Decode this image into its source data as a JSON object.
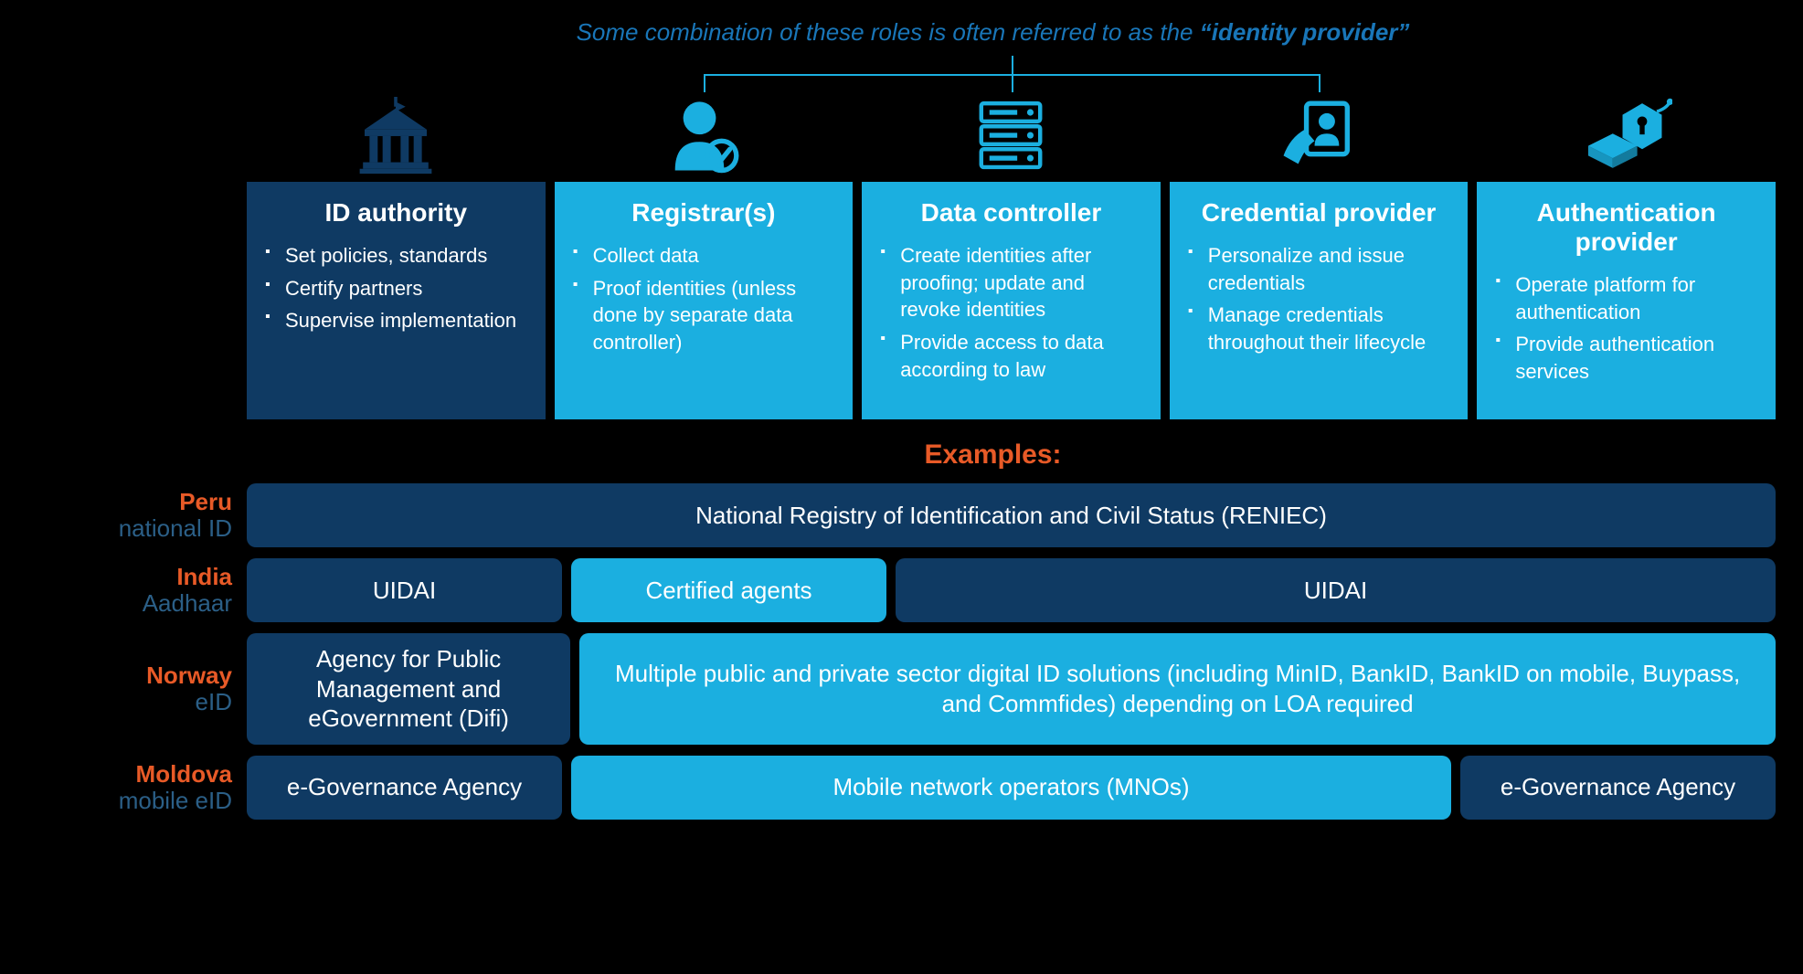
{
  "colors": {
    "background": "#000000",
    "dark_blue": "#0f3a63",
    "light_blue": "#1bafe0",
    "orange": "#e85a27",
    "note_blue": "#1976b8",
    "label_blue": "#2b5f87",
    "icon_dark": "#0f3a63",
    "icon_light": "#1bafe0"
  },
  "top_note": {
    "prefix": "Some combination of these roles is often referred to as the ",
    "quoted": "“identity provider”",
    "fontsize": 26
  },
  "roles": [
    {
      "title": "ID authority",
      "box_class": "dark",
      "icon": "gov-building",
      "icon_color": "#0f3a63",
      "bullets": [
        "Set policies, standards",
        "Certify partners",
        "Supervise implementation"
      ]
    },
    {
      "title": "Registrar(s)",
      "box_class": "light",
      "icon": "person-check",
      "icon_color": "#1bafe0",
      "bullets": [
        "Collect data",
        "Proof identities (unless done by separate data controller)"
      ]
    },
    {
      "title": "Data controller",
      "box_class": "light",
      "icon": "server",
      "icon_color": "#1bafe0",
      "bullets": [
        "Create identities after proofing; update and revoke identities",
        "Provide access to data according to law"
      ]
    },
    {
      "title": "Credential provider",
      "box_class": "light",
      "icon": "id-card",
      "icon_color": "#1bafe0",
      "bullets": [
        "Personalize and issue credentials",
        "Manage credentials throughout their lifecycle"
      ]
    },
    {
      "title": "Authentication provider",
      "box_class": "light",
      "icon": "auth-lock",
      "icon_color": "#1bafe0",
      "bullets": [
        "Operate platform for authentication",
        "Provide authentication services"
      ]
    }
  ],
  "bracket": {
    "covers_roles": [
      1,
      2,
      3
    ],
    "color": "#1bafe0"
  },
  "examples_label": "Examples:",
  "examples": [
    {
      "country": "Peru",
      "sub": "national ID",
      "cells": [
        {
          "text": "National Registry of Identification and Civil Status (RENIEC)",
          "span": 5,
          "style": "dark"
        }
      ]
    },
    {
      "country": "India",
      "sub": "Aadhaar",
      "cells": [
        {
          "text": "UIDAI",
          "span": 1,
          "style": "dark"
        },
        {
          "text": "Certified agents",
          "span": 1,
          "style": "light"
        },
        {
          "text": "UIDAI",
          "span": 3,
          "style": "dark"
        }
      ]
    },
    {
      "country": "Norway",
      "sub": "eID",
      "cells": [
        {
          "text": "Agency for Public Management and eGovernment (Difi)",
          "span": 1,
          "style": "dark"
        },
        {
          "text": "Multiple public and private sector digital ID solutions (including MinID, BankID, BankID on mobile, Buypass, and Commfides) depending on LOA required",
          "span": 4,
          "style": "light"
        }
      ]
    },
    {
      "country": "Moldova",
      "sub": "mobile eID",
      "cells": [
        {
          "text": "e-Governance Agency",
          "span": 1,
          "style": "dark"
        },
        {
          "text": "Mobile network operators (MNOs)",
          "span": 3,
          "style": "light"
        },
        {
          "text": "e-Governance Agency",
          "span": 1,
          "style": "dark"
        }
      ]
    }
  ],
  "typography": {
    "role_title_size": 28,
    "bullet_size": 22,
    "cell_size": 26,
    "label_size": 26
  }
}
